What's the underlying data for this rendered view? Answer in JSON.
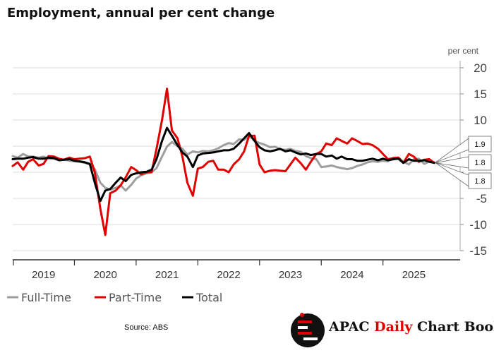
{
  "title": "Employment, annual per cent change",
  "source": "Source: ABS",
  "brand": {
    "part1": "APAC",
    "part2": "Daily",
    "part3": "Chart Book",
    "logo_icon": "apac-logo-icon"
  },
  "colors": {
    "full_time": "#9e9e9e",
    "part_time": "#e00000",
    "total": "#000000",
    "grid": "#dddddd",
    "axis": "#333333"
  },
  "chart_data": {
    "type": "line",
    "ylabel": "per cent",
    "ylim": [
      -15,
      20
    ],
    "yticks": [
      -15,
      -10,
      -5,
      0,
      5,
      10,
      15,
      20
    ],
    "ytick_labels": [
      "-15",
      "-10",
      "-5",
      "",
      "",
      "10",
      "15",
      "20"
    ],
    "xlim": [
      2018.5,
      2025.75
    ],
    "xticks": [
      {
        "label": "2019",
        "pos": 2019.0
      },
      {
        "label": "2020",
        "pos": 2020.0
      },
      {
        "label": "2021",
        "pos": 2021.0
      },
      {
        "label": "2022",
        "pos": 2022.0
      },
      {
        "label": "2023",
        "pos": 2023.0
      },
      {
        "label": "2024",
        "pos": 2024.0
      },
      {
        "label": "2025",
        "pos": 2025.0
      }
    ],
    "year_separators": [
      2019.5,
      2020.5,
      2021.5,
      2022.5,
      2023.5,
      2024.5
    ],
    "legend": {
      "placement": "bottom-left",
      "entries": [
        "Full-Time",
        "Part-Time",
        "Total"
      ]
    },
    "end_labels": [
      {
        "series": "Full-Time",
        "text": "1.9"
      },
      {
        "series": "Total",
        "text": "1.8"
      },
      {
        "series": "Part-Time",
        "text": "1.8"
      }
    ],
    "series": [
      {
        "name": "Full-Time",
        "x": [
          2018.5,
          2018.58,
          2018.67,
          2018.75,
          2018.83,
          2018.92,
          2019.0,
          2019.08,
          2019.17,
          2019.25,
          2019.33,
          2019.42,
          2019.5,
          2019.58,
          2019.67,
          2019.75,
          2019.83,
          2019.92,
          2020.0,
          2020.08,
          2020.17,
          2020.25,
          2020.33,
          2020.42,
          2020.5,
          2020.58,
          2020.67,
          2020.75,
          2020.83,
          2020.92,
          2021.0,
          2021.08,
          2021.17,
          2021.25,
          2021.33,
          2021.42,
          2021.5,
          2021.58,
          2021.67,
          2021.75,
          2021.83,
          2021.92,
          2022.0,
          2022.08,
          2022.17,
          2022.25,
          2022.33,
          2022.42,
          2022.5,
          2022.58,
          2022.67,
          2022.75,
          2022.83,
          2022.92,
          2023.0,
          2023.08,
          2023.17,
          2023.25,
          2023.33,
          2023.42,
          2023.5,
          2023.58,
          2023.67,
          2023.75,
          2023.83,
          2023.92,
          2024.0,
          2024.08,
          2024.17,
          2024.25,
          2024.33,
          2024.42,
          2024.5,
          2024.58,
          2024.67,
          2024.75,
          2024.83,
          2024.92,
          2025.0,
          2025.08,
          2025.17,
          2025.25,
          2025.33
        ],
        "values": [
          3.1,
          2.8,
          3.5,
          3.0,
          3.0,
          2.8,
          3.0,
          2.6,
          2.6,
          2.3,
          2.4,
          2.2,
          2.1,
          2.0,
          1.8,
          1.5,
          0.6,
          -2.0,
          -3.0,
          -3.3,
          -3.0,
          -2.5,
          -3.5,
          -2.4,
          -1.2,
          -0.6,
          -0.2,
          0.0,
          0.8,
          3.0,
          4.9,
          5.8,
          5.0,
          4.5,
          3.4,
          4.0,
          3.8,
          4.1,
          4.0,
          4.2,
          4.6,
          5.2,
          5.6,
          5.4,
          6.3,
          6.2,
          7.0,
          6.0,
          5.6,
          5.3,
          4.8,
          4.9,
          4.4,
          4.3,
          4.5,
          4.1,
          3.9,
          3.1,
          2.7,
          2.5,
          1.0,
          1.1,
          1.3,
          1.0,
          0.8,
          0.6,
          0.8,
          1.2,
          1.5,
          1.9,
          2.1,
          2.0,
          2.2,
          2.1,
          2.8,
          2.8,
          2.0,
          1.5,
          2.5,
          2.6,
          1.6,
          2.1,
          1.9
        ]
      },
      {
        "name": "Part-Time",
        "x": [
          2018.5,
          2018.58,
          2018.67,
          2018.75,
          2018.83,
          2018.92,
          2019.0,
          2019.08,
          2019.17,
          2019.25,
          2019.33,
          2019.42,
          2019.5,
          2019.58,
          2019.67,
          2019.75,
          2019.83,
          2019.92,
          2020.0,
          2020.08,
          2020.17,
          2020.25,
          2020.33,
          2020.42,
          2020.5,
          2020.58,
          2020.67,
          2020.75,
          2020.83,
          2020.92,
          2021.0,
          2021.08,
          2021.17,
          2021.25,
          2021.33,
          2021.42,
          2021.5,
          2021.58,
          2021.67,
          2021.75,
          2021.83,
          2021.92,
          2022.0,
          2022.08,
          2022.17,
          2022.25,
          2022.33,
          2022.42,
          2022.5,
          2022.58,
          2022.67,
          2022.75,
          2022.83,
          2022.92,
          2023.0,
          2023.08,
          2023.17,
          2023.25,
          2023.33,
          2023.42,
          2023.5,
          2023.58,
          2023.67,
          2023.75,
          2023.83,
          2023.92,
          2024.0,
          2024.08,
          2024.17,
          2024.25,
          2024.33,
          2024.42,
          2024.5,
          2024.58,
          2024.67,
          2024.75,
          2024.83,
          2024.92,
          2025.0,
          2025.08,
          2025.17,
          2025.25,
          2025.33
        ],
        "values": [
          1.2,
          1.9,
          0.5,
          2.0,
          2.5,
          1.3,
          1.6,
          3.1,
          3.0,
          2.6,
          2.4,
          2.8,
          2.5,
          2.6,
          2.7,
          3.0,
          0.0,
          -7.0,
          -12.0,
          -4.0,
          -3.5,
          -2.5,
          -1.0,
          1.0,
          0.4,
          -0.4,
          0.0,
          0.0,
          4.5,
          10.0,
          16.0,
          8.0,
          6.5,
          3.0,
          -2.0,
          -4.5,
          0.7,
          1.0,
          2.0,
          2.2,
          0.5,
          0.5,
          0.0,
          1.5,
          2.5,
          4.0,
          7.0,
          7.0,
          1.5,
          0.0,
          0.3,
          0.4,
          0.3,
          0.2,
          1.5,
          2.8,
          1.7,
          0.5,
          2.0,
          3.5,
          4.0,
          5.5,
          5.2,
          6.5,
          6.0,
          5.5,
          6.5,
          6.0,
          5.4,
          5.5,
          5.2,
          4.5,
          3.5,
          2.5,
          2.7,
          2.8,
          1.8,
          3.5,
          3.0,
          2.0,
          2.4,
          2.5,
          1.8
        ]
      },
      {
        "name": "Total",
        "x": [
          2018.5,
          2018.58,
          2018.67,
          2018.75,
          2018.83,
          2018.92,
          2019.0,
          2019.08,
          2019.17,
          2019.25,
          2019.33,
          2019.42,
          2019.5,
          2019.58,
          2019.67,
          2019.75,
          2019.83,
          2019.92,
          2020.0,
          2020.08,
          2020.17,
          2020.25,
          2020.33,
          2020.42,
          2020.5,
          2020.58,
          2020.67,
          2020.75,
          2020.83,
          2020.92,
          2021.0,
          2021.08,
          2021.17,
          2021.25,
          2021.33,
          2021.42,
          2021.5,
          2021.58,
          2021.67,
          2021.75,
          2021.83,
          2021.92,
          2022.0,
          2022.08,
          2022.17,
          2022.25,
          2022.33,
          2022.42,
          2022.5,
          2022.58,
          2022.67,
          2022.75,
          2022.83,
          2022.92,
          2023.0,
          2023.08,
          2023.17,
          2023.25,
          2023.33,
          2023.42,
          2023.5,
          2023.58,
          2023.67,
          2023.75,
          2023.83,
          2023.92,
          2024.0,
          2024.08,
          2024.17,
          2024.25,
          2024.33,
          2024.42,
          2024.5,
          2024.58,
          2024.67,
          2024.75,
          2024.83,
          2024.92,
          2025.0,
          2025.08,
          2025.17,
          2025.25,
          2025.33
        ],
        "values": [
          2.5,
          2.6,
          2.6,
          2.8,
          2.9,
          2.6,
          2.6,
          2.8,
          2.7,
          2.3,
          2.4,
          2.5,
          2.2,
          2.1,
          1.9,
          1.6,
          -2.0,
          -5.5,
          -3.5,
          -3.2,
          -2.0,
          -1.0,
          -1.7,
          -0.5,
          -0.2,
          0.0,
          0.1,
          0.5,
          2.5,
          6.0,
          8.5,
          7.0,
          5.2,
          3.8,
          3.0,
          1.0,
          3.2,
          3.6,
          3.7,
          3.8,
          4.0,
          4.2,
          4.2,
          4.5,
          5.5,
          6.5,
          7.5,
          6.0,
          4.8,
          4.2,
          4.0,
          4.2,
          4.5,
          4.0,
          4.2,
          3.8,
          3.4,
          3.6,
          3.3,
          3.5,
          3.5,
          3.0,
          3.2,
          2.6,
          3.0,
          2.5,
          2.5,
          2.2,
          2.2,
          2.4,
          2.6,
          2.3,
          2.6,
          2.3,
          2.5,
          2.6,
          1.8,
          2.5,
          2.2,
          2.2,
          2.3,
          2.0,
          1.8
        ]
      }
    ]
  }
}
